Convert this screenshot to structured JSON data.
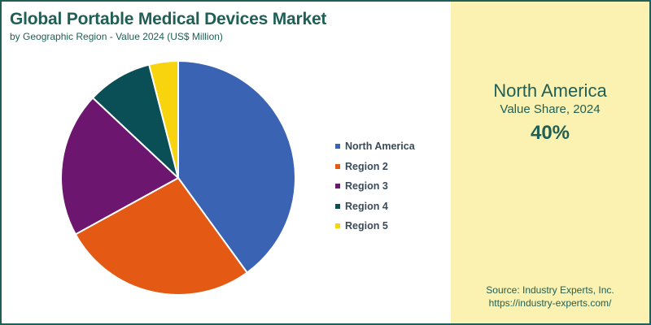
{
  "header": {
    "title": "Global Portable Medical Devices Market",
    "subtitle": "by Geographic Region - Value 2024 (US$ Million)"
  },
  "side_panel": {
    "region": "North America",
    "label": "Value Share, 2024",
    "value": "40%",
    "source_line1": "Source: Industry Experts, Inc.",
    "source_line2": "https://industry-experts.com/",
    "background": "#fbf1b0"
  },
  "colors": {
    "accent": "#1f5f55"
  },
  "chart_data": {
    "type": "pie",
    "title": "Global Portable Medical Devices Market",
    "subtitle": "by Geographic Region - Value 2024 (US$ Million)",
    "legend_position": "right",
    "categories": [
      "North America",
      "Region 2",
      "Region 3",
      "Region 4",
      "Region 5"
    ],
    "values": [
      40,
      27,
      20,
      9,
      4
    ],
    "unit": "%",
    "colors": [
      "#3a63b3",
      "#e45913",
      "#6d1670",
      "#0b4f56",
      "#f7d40d"
    ]
  }
}
